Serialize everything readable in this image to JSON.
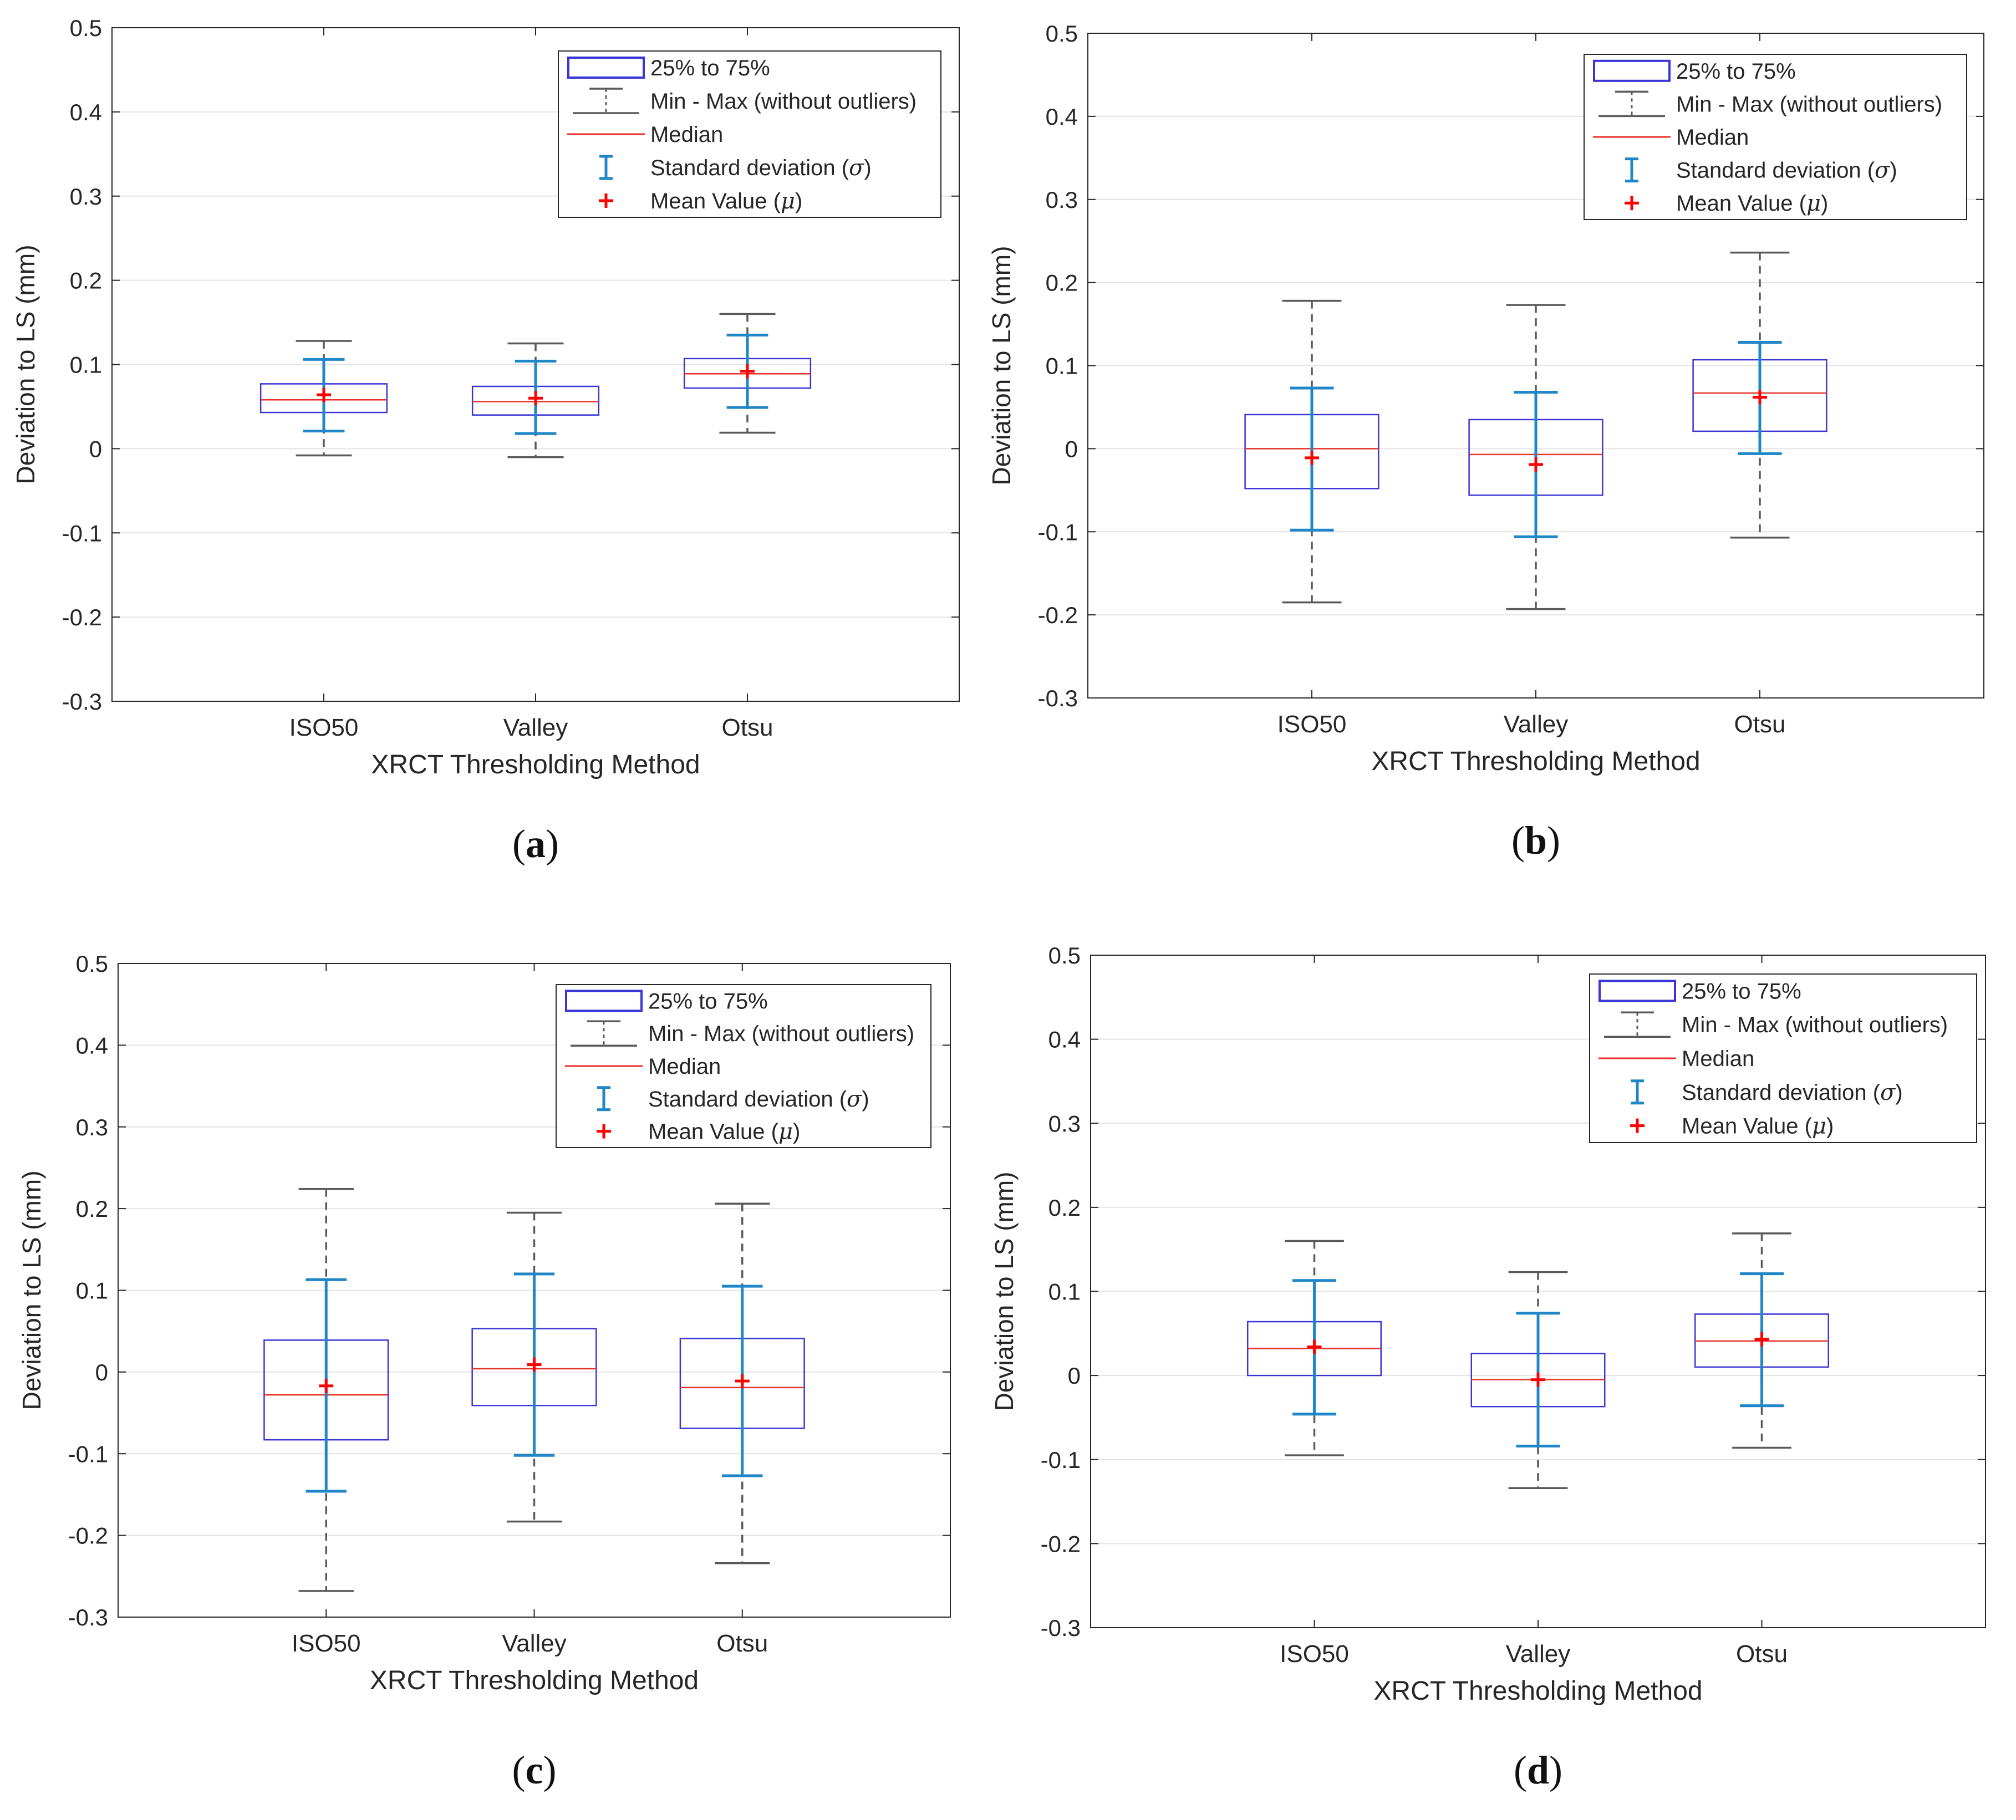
{
  "figure": {
    "legend": {
      "iqr": "25% to 75%",
      "whisker": "Min - Max (without outliers)",
      "median": "Median",
      "sd_prefix": "Standard deviation (",
      "sd_symbol": "σ",
      "sd_suffix": ")",
      "mean_prefix": "Mean Value (",
      "mean_symbol": "μ",
      "mean_suffix": ")"
    },
    "colors": {
      "box": "#3b35d6",
      "median": "#e8322b",
      "whisker": "#5a5a5a",
      "sd": "#1f86c8",
      "mean": "#ff0000",
      "grid": "#e4e4e4",
      "axis": "#262626"
    }
  },
  "chart_data": [
    {
      "panel": "(a)",
      "panel_open": "(",
      "panel_letter": "a",
      "panel_close": ")",
      "type": "box",
      "xlabel": "XRCT Thresholding Method",
      "ylabel": "Deviation to LS (mm)",
      "ylim": [
        -0.3,
        0.5
      ],
      "yticks": [
        -0.3,
        -0.2,
        -0.1,
        0,
        0.1,
        0.2,
        0.3,
        0.4,
        0.5
      ],
      "ytick_labels": [
        "-0.3",
        "-0.2",
        "-0.1",
        "0",
        "0.1",
        "0.2",
        "0.3",
        "0.4",
        "0.5"
      ],
      "grid": true,
      "legend_position": "top-right",
      "categories": [
        "ISO50",
        "Valley",
        "Otsu"
      ],
      "boxes": [
        {
          "min": -0.008,
          "q1": 0.043,
          "median": 0.058,
          "q3": 0.077,
          "max": 0.128,
          "mean": 0.064,
          "sd_low": 0.021,
          "sd_high": 0.106
        },
        {
          "min": -0.01,
          "q1": 0.04,
          "median": 0.056,
          "q3": 0.074,
          "max": 0.125,
          "mean": 0.06,
          "sd_low": 0.018,
          "sd_high": 0.104
        },
        {
          "min": 0.019,
          "q1": 0.072,
          "median": 0.089,
          "q3": 0.107,
          "max": 0.16,
          "mean": 0.092,
          "sd_low": 0.049,
          "sd_high": 0.135
        }
      ]
    },
    {
      "panel": "(b)",
      "panel_open": "(",
      "panel_letter": "b",
      "panel_close": ")",
      "type": "box",
      "xlabel": "XRCT Thresholding Method",
      "ylabel": "Deviation to LS (mm)",
      "ylim": [
        -0.3,
        0.5
      ],
      "yticks": [
        -0.3,
        -0.2,
        -0.1,
        0,
        0.1,
        0.2,
        0.3,
        0.4,
        0.5
      ],
      "ytick_labels": [
        "-0.3",
        "-0.2",
        "-0.1",
        "0",
        "0.1",
        "0.2",
        "0.3",
        "0.4",
        "0.5"
      ],
      "grid": true,
      "legend_position": "top-right",
      "categories": [
        "ISO50",
        "Valley",
        "Otsu"
      ],
      "boxes": [
        {
          "min": -0.185,
          "q1": -0.048,
          "median": 0.0,
          "q3": 0.041,
          "max": 0.178,
          "mean": -0.011,
          "sd_low": -0.098,
          "sd_high": 0.073
        },
        {
          "min": -0.193,
          "q1": -0.056,
          "median": -0.007,
          "q3": 0.035,
          "max": 0.173,
          "mean": -0.019,
          "sd_low": -0.106,
          "sd_high": 0.068
        },
        {
          "min": -0.107,
          "q1": 0.021,
          "median": 0.067,
          "q3": 0.107,
          "max": 0.236,
          "mean": 0.062,
          "sd_low": -0.006,
          "sd_high": 0.128
        }
      ]
    },
    {
      "panel": "(c)",
      "panel_open": "(",
      "panel_letter": "c",
      "panel_close": ")",
      "type": "box",
      "xlabel": "XRCT Thresholding Method",
      "ylabel": "Deviation to LS (mm)",
      "ylim": [
        -0.3,
        0.5
      ],
      "yticks": [
        -0.3,
        -0.2,
        -0.1,
        0,
        0.1,
        0.2,
        0.3,
        0.4,
        0.5
      ],
      "ytick_labels": [
        "-0.3",
        "-0.2",
        "-0.1",
        "0",
        "0.1",
        "0.2",
        "0.3",
        "0.4",
        "0.5"
      ],
      "grid": true,
      "legend_position": "top-right",
      "categories": [
        "ISO50",
        "Valley",
        "Otsu"
      ],
      "boxes": [
        {
          "min": -0.268,
          "q1": -0.083,
          "median": -0.028,
          "q3": 0.039,
          "max": 0.224,
          "mean": -0.017,
          "sd_low": -0.146,
          "sd_high": 0.113
        },
        {
          "min": -0.183,
          "q1": -0.041,
          "median": 0.004,
          "q3": 0.053,
          "max": 0.195,
          "mean": 0.009,
          "sd_low": -0.102,
          "sd_high": 0.12
        },
        {
          "min": -0.234,
          "q1": -0.069,
          "median": -0.019,
          "q3": 0.041,
          "max": 0.206,
          "mean": -0.011,
          "sd_low": -0.127,
          "sd_high": 0.105
        }
      ]
    },
    {
      "panel": "(d)",
      "panel_open": "(",
      "panel_letter": "d",
      "panel_close": ")",
      "type": "box",
      "xlabel": "XRCT Thresholding Method",
      "ylabel": "Deviation to LS (mm)",
      "ylim": [
        -0.3,
        0.5
      ],
      "yticks": [
        -0.3,
        -0.2,
        -0.1,
        0,
        0.1,
        0.2,
        0.3,
        0.4,
        0.5
      ],
      "ytick_labels": [
        "-0.3",
        "-0.2",
        "-0.1",
        "0",
        "0.1",
        "0.2",
        "0.3",
        "0.4",
        "0.5"
      ],
      "grid": true,
      "legend_position": "top-right",
      "categories": [
        "ISO50",
        "Valley",
        "Otsu"
      ],
      "boxes": [
        {
          "min": -0.095,
          "q1": 0.0,
          "median": 0.032,
          "q3": 0.064,
          "max": 0.16,
          "mean": 0.034,
          "sd_low": -0.046,
          "sd_high": 0.113
        },
        {
          "min": -0.134,
          "q1": -0.037,
          "median": -0.005,
          "q3": 0.026,
          "max": 0.123,
          "mean": -0.005,
          "sd_low": -0.084,
          "sd_high": 0.074
        },
        {
          "min": -0.086,
          "q1": 0.01,
          "median": 0.041,
          "q3": 0.073,
          "max": 0.169,
          "mean": 0.043,
          "sd_low": -0.036,
          "sd_high": 0.121
        }
      ]
    }
  ]
}
